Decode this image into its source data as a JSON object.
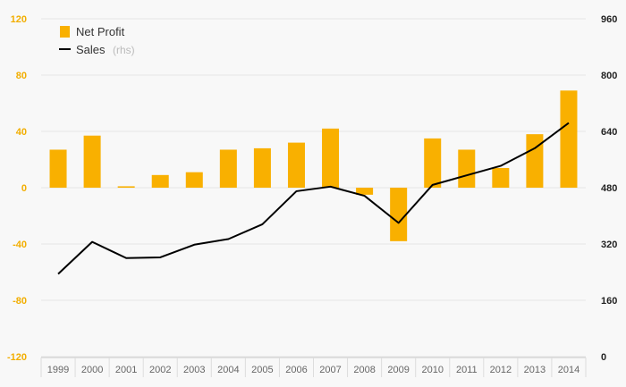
{
  "chart_data": {
    "type": "bar",
    "categories": [
      "1999",
      "2000",
      "2001",
      "2002",
      "2003",
      "2004",
      "2005",
      "2006",
      "2007",
      "2008",
      "2009",
      "2010",
      "2011",
      "2012",
      "2013",
      "2014"
    ],
    "series": [
      {
        "name": "Net Profit",
        "type": "bar",
        "axis": "left",
        "color": "#f9b000",
        "values": [
          27,
          37,
          1,
          9,
          11,
          27,
          28,
          32,
          42,
          -5,
          -38,
          35,
          27,
          14,
          38,
          69
        ]
      },
      {
        "name": "Sales",
        "name_suffix": "(rhs)",
        "type": "line",
        "axis": "right",
        "color": "#000000",
        "values": [
          235,
          326,
          280,
          282,
          318,
          334,
          376,
          470,
          483,
          457,
          380,
          488,
          515,
          542,
          592,
          664
        ]
      }
    ],
    "left_axis": {
      "ticks": [
        "120",
        "80",
        "40",
        "0",
        "-40",
        "-80",
        "-120"
      ],
      "range": [
        -120,
        120
      ]
    },
    "right_axis": {
      "ticks": [
        "960",
        "800",
        "640",
        "480",
        "320",
        "160",
        "0"
      ],
      "range": [
        0,
        960
      ]
    },
    "grid": true,
    "legend_position": "top-left"
  }
}
